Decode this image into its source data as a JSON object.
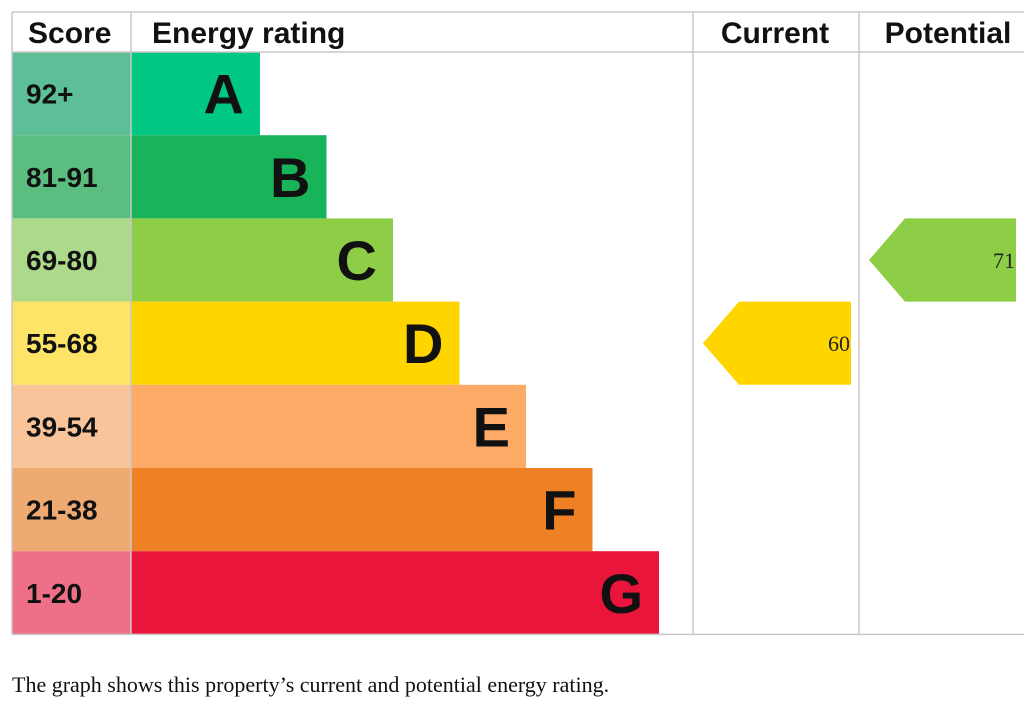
{
  "headers": {
    "score": "Score",
    "energy_rating": "Energy rating",
    "current": "Current",
    "potential": "Potential"
  },
  "chart_data": {
    "type": "bar",
    "title": "",
    "bands": [
      {
        "letter": "A",
        "range": "92+",
        "color": "#00c781",
        "score_color": "#5cbf98"
      },
      {
        "letter": "B",
        "range": "81-91",
        "color": "#19b459",
        "score_color": "#5bbd7f"
      },
      {
        "letter": "C",
        "range": "69-80",
        "color": "#8dce46",
        "score_color": "#acd98a"
      },
      {
        "letter": "D",
        "range": "55-68",
        "color": "#ffd500",
        "score_color": "#fde466"
      },
      {
        "letter": "E",
        "range": "39-54",
        "color": "#fcaa65",
        "score_color": "#f9c49a"
      },
      {
        "letter": "F",
        "range": "21-38",
        "color": "#ef8023",
        "score_color": "#eeaa70"
      },
      {
        "letter": "G",
        "range": "1-20",
        "color": "#e9153b",
        "score_color": "#ee7088"
      }
    ],
    "current": {
      "value": 60,
      "band": "D",
      "color": "#ffd500"
    },
    "potential": {
      "value": 71,
      "band": "C",
      "color": "#8dce46"
    }
  },
  "caption": "The graph shows this property’s current and potential energy rating."
}
